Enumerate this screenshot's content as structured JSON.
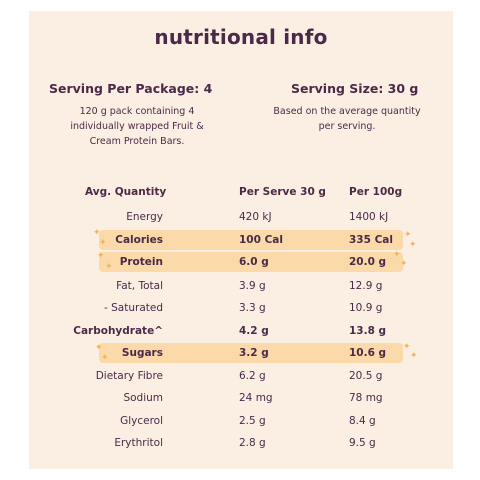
{
  "title": "nutritional info",
  "serving_per_package": {
    "heading": "Serving Per Package: 4",
    "description_lines": [
      "120 g pack containing 4",
      "individually wrapped Fruit &",
      "Cream Protein Bars."
    ]
  },
  "serving_size": {
    "heading": "Serving Size: 30 g",
    "description_lines": [
      "Based on the average quantity",
      "per serving."
    ]
  },
  "table": {
    "headers": [
      "Avg. Quantity",
      "Per Serve 30 g",
      "Per 100g"
    ],
    "rows": [
      {
        "name": "Energy",
        "per_serve": "420 kJ",
        "per_100g": "1400 kJ",
        "bold": false,
        "highlight": false
      },
      {
        "name": "Calories",
        "per_serve": "100 Cal",
        "per_100g": "335 Cal",
        "bold": true,
        "highlight": true
      },
      {
        "name": "Protein",
        "per_serve": "6.0 g",
        "per_100g": "20.0 g",
        "bold": true,
        "highlight": true
      },
      {
        "name": "Fat, Total",
        "per_serve": "3.9 g",
        "per_100g": "12.9 g",
        "bold": false,
        "highlight": false
      },
      {
        "name": "- Saturated",
        "per_serve": "3.3 g",
        "per_100g": "10.9 g",
        "bold": false,
        "highlight": false
      },
      {
        "name": "Carbohydrate^",
        "per_serve": "4.2 g",
        "per_100g": "13.8 g",
        "bold": true,
        "highlight": false
      },
      {
        "name": "Sugars",
        "per_serve": "3.2 g",
        "per_100g": "10.6 g",
        "bold": true,
        "highlight": true
      },
      {
        "name": "Dietary Fibre",
        "per_serve": "6.2 g",
        "per_100g": "20.5 g",
        "bold": false,
        "highlight": false
      },
      {
        "name": "Sodium",
        "per_serve": "24 mg",
        "per_100g": "78 mg",
        "bold": false,
        "highlight": false
      },
      {
        "name": "Glycerol",
        "per_serve": "2.5 g",
        "per_100g": "8.4 g",
        "bold": false,
        "highlight": false
      },
      {
        "name": "Erythritol",
        "per_serve": "2.8 g",
        "per_100g": "9.5 g",
        "bold": false,
        "highlight": false
      }
    ]
  },
  "colors": {
    "panel_background": "#fbeee3",
    "text": "#4a2a48",
    "highlight": "#fbd9a8",
    "sparkle": "#f2b35c"
  }
}
